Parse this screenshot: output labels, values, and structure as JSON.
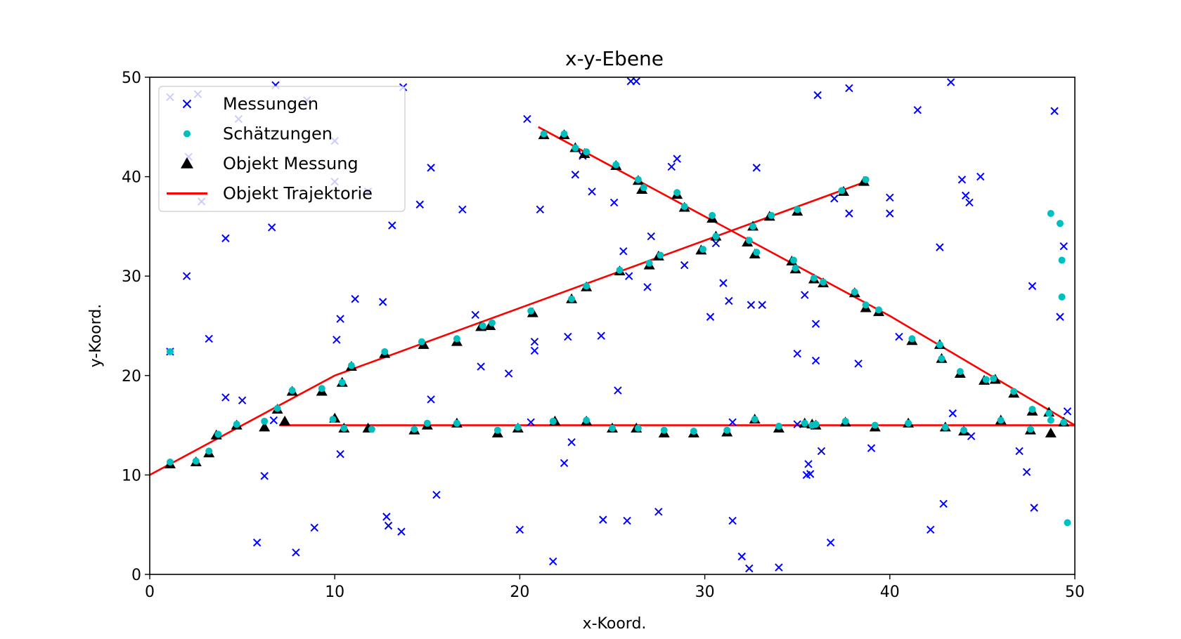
{
  "chart_data": {
    "type": "scatter",
    "title": "x-y-Ebene",
    "xlabel": "x-Koord.",
    "ylabel": "y-Koord.",
    "xlim": [
      0,
      50
    ],
    "ylim": [
      0,
      50
    ],
    "xticks": [
      0,
      10,
      20,
      30,
      40,
      50
    ],
    "yticks": [
      0,
      10,
      20,
      30,
      40,
      50
    ],
    "grid": false,
    "legend_position": "upper-left",
    "colors": {
      "messungen": "#0000ff",
      "schaetzungen": "#00bfbf",
      "objekt_messung": "#000000",
      "trajektorie": "#ff0000"
    },
    "series": [
      {
        "name": "Messungen",
        "marker": "x",
        "points": [
          [
            1.1,
            22.4
          ],
          [
            1.1,
            48.0
          ],
          [
            2.0,
            30.0
          ],
          [
            2.1,
            42.0
          ],
          [
            2.6,
            48.3
          ],
          [
            2.8,
            37.5
          ],
          [
            3.2,
            23.7
          ],
          [
            4.1,
            33.8
          ],
          [
            4.1,
            17.8
          ],
          [
            4.8,
            45.8
          ],
          [
            5.0,
            17.5
          ],
          [
            5.8,
            3.2
          ],
          [
            6.2,
            9.9
          ],
          [
            6.6,
            34.9
          ],
          [
            6.8,
            49.2
          ],
          [
            6.7,
            15.5
          ],
          [
            7.9,
            2.2
          ],
          [
            8.5,
            47.7
          ],
          [
            8.9,
            4.7
          ],
          [
            10.0,
            43.6
          ],
          [
            10.0,
            39.5
          ],
          [
            10.1,
            23.6
          ],
          [
            10.3,
            25.7
          ],
          [
            10.3,
            12.1
          ],
          [
            11.1,
            27.7
          ],
          [
            11.8,
            38.5
          ],
          [
            12.6,
            27.4
          ],
          [
            12.8,
            5.8
          ],
          [
            12.9,
            4.9
          ],
          [
            13.1,
            35.1
          ],
          [
            13.6,
            4.3
          ],
          [
            13.7,
            49.0
          ],
          [
            14.6,
            37.2
          ],
          [
            15.2,
            40.9
          ],
          [
            15.2,
            17.6
          ],
          [
            15.5,
            8.0
          ],
          [
            16.9,
            36.7
          ],
          [
            17.6,
            26.1
          ],
          [
            17.9,
            20.9
          ],
          [
            19.4,
            20.2
          ],
          [
            20.0,
            4.5
          ],
          [
            20.4,
            45.8
          ],
          [
            20.6,
            15.3
          ],
          [
            20.8,
            22.5
          ],
          [
            20.8,
            23.4
          ],
          [
            21.1,
            36.7
          ],
          [
            21.8,
            1.3
          ],
          [
            22.4,
            11.2
          ],
          [
            22.6,
            23.9
          ],
          [
            22.8,
            13.3
          ],
          [
            23.0,
            40.2
          ],
          [
            23.4,
            42.1
          ],
          [
            23.9,
            38.5
          ],
          [
            24.4,
            24.0
          ],
          [
            24.5,
            5.5
          ],
          [
            25.1,
            37.4
          ],
          [
            25.3,
            18.5
          ],
          [
            25.6,
            32.5
          ],
          [
            25.8,
            5.4
          ],
          [
            25.9,
            30.0
          ],
          [
            26.0,
            49.6
          ],
          [
            26.3,
            49.6
          ],
          [
            26.9,
            28.9
          ],
          [
            27.1,
            34.0
          ],
          [
            27.5,
            6.3
          ],
          [
            28.2,
            41.0
          ],
          [
            28.5,
            41.8
          ],
          [
            28.9,
            31.1
          ],
          [
            30.3,
            25.9
          ],
          [
            30.6,
            33.3
          ],
          [
            31.0,
            29.3
          ],
          [
            31.3,
            27.5
          ],
          [
            31.5,
            15.3
          ],
          [
            31.5,
            5.4
          ],
          [
            32.0,
            1.8
          ],
          [
            32.4,
            0.6
          ],
          [
            32.5,
            27.1
          ],
          [
            32.8,
            40.9
          ],
          [
            33.1,
            27.1
          ],
          [
            34.0,
            0.7
          ],
          [
            35.0,
            15.1
          ],
          [
            35.0,
            22.2
          ],
          [
            35.4,
            28.1
          ],
          [
            35.5,
            10.0
          ],
          [
            35.6,
            11.1
          ],
          [
            35.7,
            10.1
          ],
          [
            36.0,
            21.5
          ],
          [
            36.0,
            25.2
          ],
          [
            36.1,
            48.2
          ],
          [
            36.3,
            12.4
          ],
          [
            36.8,
            3.2
          ],
          [
            37.0,
            37.8
          ],
          [
            37.8,
            48.9
          ],
          [
            37.8,
            36.3
          ],
          [
            38.3,
            21.2
          ],
          [
            39.0,
            12.7
          ],
          [
            40.0,
            37.9
          ],
          [
            40.0,
            36.3
          ],
          [
            40.5,
            23.9
          ],
          [
            41.5,
            46.7
          ],
          [
            42.2,
            4.5
          ],
          [
            42.7,
            32.9
          ],
          [
            42.9,
            7.1
          ],
          [
            43.3,
            49.5
          ],
          [
            43.4,
            16.2
          ],
          [
            43.9,
            39.7
          ],
          [
            44.1,
            38.1
          ],
          [
            44.3,
            37.4
          ],
          [
            44.4,
            13.9
          ],
          [
            44.9,
            40.0
          ],
          [
            47.0,
            12.4
          ],
          [
            47.4,
            10.3
          ],
          [
            47.7,
            29.0
          ],
          [
            47.8,
            6.7
          ],
          [
            48.9,
            46.6
          ],
          [
            49.2,
            25.9
          ],
          [
            49.4,
            33.0
          ],
          [
            49.6,
            16.4
          ]
        ]
      },
      {
        "name": "Schätzungen",
        "marker": "o",
        "points": [
          [
            1.1,
            22.4
          ],
          [
            1.1,
            11.3
          ],
          [
            2.5,
            11.4
          ],
          [
            3.2,
            12.4
          ],
          [
            3.7,
            14.1
          ],
          [
            4.7,
            15.1
          ],
          [
            6.2,
            15.4
          ],
          [
            6.9,
            16.7
          ],
          [
            7.7,
            18.5
          ],
          [
            9.3,
            18.7
          ],
          [
            9.9,
            15.6
          ],
          [
            10.4,
            19.3
          ],
          [
            10.5,
            14.7
          ],
          [
            10.9,
            21.0
          ],
          [
            12.0,
            14.6
          ],
          [
            12.7,
            22.4
          ],
          [
            14.3,
            14.6
          ],
          [
            14.7,
            23.4
          ],
          [
            15.0,
            15.2
          ],
          [
            16.6,
            15.2
          ],
          [
            16.6,
            23.7
          ],
          [
            18.0,
            25.0
          ],
          [
            18.5,
            25.3
          ],
          [
            18.8,
            14.5
          ],
          [
            19.9,
            14.8
          ],
          [
            20.6,
            26.5
          ],
          [
            21.3,
            44.3
          ],
          [
            21.8,
            15.4
          ],
          [
            22.4,
            44.3
          ],
          [
            22.8,
            27.7
          ],
          [
            23.0,
            42.9
          ],
          [
            23.6,
            29.0
          ],
          [
            23.6,
            15.5
          ],
          [
            23.6,
            42.5
          ],
          [
            25.0,
            14.7
          ],
          [
            25.2,
            41.2
          ],
          [
            25.4,
            30.6
          ],
          [
            26.4,
            14.7
          ],
          [
            26.4,
            39.7
          ],
          [
            26.7,
            38.9
          ],
          [
            27.0,
            31.3
          ],
          [
            27.6,
            32.1
          ],
          [
            27.8,
            14.5
          ],
          [
            28.5,
            38.4
          ],
          [
            28.9,
            37.0
          ],
          [
            29.4,
            14.4
          ],
          [
            29.9,
            32.7
          ],
          [
            30.4,
            36.1
          ],
          [
            30.6,
            34.0
          ],
          [
            31.2,
            14.5
          ],
          [
            32.4,
            33.6
          ],
          [
            32.6,
            35.0
          ],
          [
            32.7,
            15.6
          ],
          [
            32.8,
            32.4
          ],
          [
            33.6,
            36.1
          ],
          [
            34.0,
            14.9
          ],
          [
            34.8,
            31.6
          ],
          [
            34.9,
            30.8
          ],
          [
            35.0,
            36.7
          ],
          [
            35.4,
            15.2
          ],
          [
            35.8,
            15.0
          ],
          [
            35.9,
            29.8
          ],
          [
            36.0,
            15.1
          ],
          [
            36.4,
            29.4
          ],
          [
            37.6,
            15.4
          ],
          [
            37.4,
            38.6
          ],
          [
            38.1,
            28.4
          ],
          [
            38.7,
            39.7
          ],
          [
            38.7,
            27.1
          ],
          [
            39.2,
            15.0
          ],
          [
            39.4,
            26.6
          ],
          [
            41.0,
            15.2
          ],
          [
            41.2,
            23.7
          ],
          [
            42.7,
            23.1
          ],
          [
            42.8,
            21.7
          ],
          [
            43.0,
            14.8
          ],
          [
            43.8,
            20.4
          ],
          [
            44.0,
            14.5
          ],
          [
            45.2,
            19.6
          ],
          [
            45.6,
            19.7
          ],
          [
            46.0,
            15.5
          ],
          [
            46.7,
            18.4
          ],
          [
            47.6,
            14.6
          ],
          [
            47.7,
            16.6
          ],
          [
            48.6,
            16.2
          ],
          [
            48.7,
            15.5
          ],
          [
            48.7,
            36.3
          ],
          [
            49.2,
            35.3
          ],
          [
            49.3,
            31.6
          ],
          [
            49.3,
            27.9
          ],
          [
            49.4,
            15.3
          ],
          [
            49.6,
            5.2
          ]
        ]
      },
      {
        "name": "Objekt Messung",
        "marker": "^",
        "points": [
          [
            1.1,
            11.1
          ],
          [
            2.5,
            11.3
          ],
          [
            3.2,
            12.2
          ],
          [
            3.6,
            14.0
          ],
          [
            4.7,
            15.0
          ],
          [
            6.2,
            14.8
          ],
          [
            6.9,
            16.6
          ],
          [
            7.3,
            15.4
          ],
          [
            7.7,
            18.4
          ],
          [
            9.3,
            18.4
          ],
          [
            10.0,
            15.7
          ],
          [
            10.4,
            19.3
          ],
          [
            10.5,
            14.7
          ],
          [
            10.9,
            20.9
          ],
          [
            11.8,
            14.7
          ],
          [
            12.7,
            22.2
          ],
          [
            14.3,
            14.5
          ],
          [
            14.8,
            23.1
          ],
          [
            15.0,
            15.0
          ],
          [
            16.6,
            23.4
          ],
          [
            16.6,
            15.2
          ],
          [
            17.9,
            24.9
          ],
          [
            18.4,
            25.0
          ],
          [
            18.8,
            14.2
          ],
          [
            19.9,
            14.7
          ],
          [
            20.7,
            26.3
          ],
          [
            21.3,
            44.2
          ],
          [
            21.9,
            15.4
          ],
          [
            22.4,
            44.2
          ],
          [
            22.8,
            27.7
          ],
          [
            23.0,
            42.9
          ],
          [
            23.5,
            42.3
          ],
          [
            23.6,
            28.9
          ],
          [
            23.6,
            15.4
          ],
          [
            25.0,
            14.7
          ],
          [
            25.2,
            41.1
          ],
          [
            25.4,
            30.5
          ],
          [
            26.3,
            14.7
          ],
          [
            26.4,
            39.6
          ],
          [
            26.6,
            38.7
          ],
          [
            27.0,
            31.1
          ],
          [
            27.5,
            32.0
          ],
          [
            27.8,
            14.2
          ],
          [
            28.5,
            38.2
          ],
          [
            28.9,
            36.9
          ],
          [
            29.4,
            14.2
          ],
          [
            29.8,
            32.6
          ],
          [
            30.4,
            35.8
          ],
          [
            30.6,
            34.0
          ],
          [
            31.2,
            14.3
          ],
          [
            32.3,
            33.4
          ],
          [
            32.6,
            35.0
          ],
          [
            32.7,
            15.6
          ],
          [
            32.7,
            32.2
          ],
          [
            33.5,
            36.0
          ],
          [
            34.0,
            14.7
          ],
          [
            34.7,
            31.5
          ],
          [
            34.9,
            30.7
          ],
          [
            35.0,
            36.5
          ],
          [
            35.4,
            15.2
          ],
          [
            35.8,
            15.1
          ],
          [
            35.9,
            29.7
          ],
          [
            36.0,
            15.0
          ],
          [
            36.4,
            29.3
          ],
          [
            37.6,
            15.3
          ],
          [
            37.5,
            38.5
          ],
          [
            38.1,
            28.3
          ],
          [
            38.6,
            39.5
          ],
          [
            38.7,
            26.8
          ],
          [
            39.2,
            14.8
          ],
          [
            39.4,
            26.4
          ],
          [
            41.0,
            15.2
          ],
          [
            41.2,
            23.5
          ],
          [
            42.7,
            23.1
          ],
          [
            42.8,
            21.7
          ],
          [
            43.0,
            14.8
          ],
          [
            43.8,
            20.2
          ],
          [
            44.0,
            14.4
          ],
          [
            45.1,
            19.5
          ],
          [
            45.7,
            19.6
          ],
          [
            46.0,
            15.5
          ],
          [
            46.7,
            18.2
          ],
          [
            47.6,
            14.5
          ],
          [
            47.7,
            16.4
          ],
          [
            48.6,
            16.3
          ],
          [
            48.7,
            14.2
          ],
          [
            49.4,
            15.3
          ]
        ]
      },
      {
        "name": "Objekt Trajektorie",
        "type": "line",
        "lines": [
          [
            [
              0,
              10
            ],
            [
              10,
              20
            ],
            [
              38.7,
              39.5
            ]
          ],
          [
            [
              7,
              15
            ],
            [
              50,
              15
            ]
          ],
          [
            [
              21,
              45
            ],
            [
              40,
              26
            ],
            [
              50,
              15
            ]
          ]
        ]
      }
    ]
  }
}
